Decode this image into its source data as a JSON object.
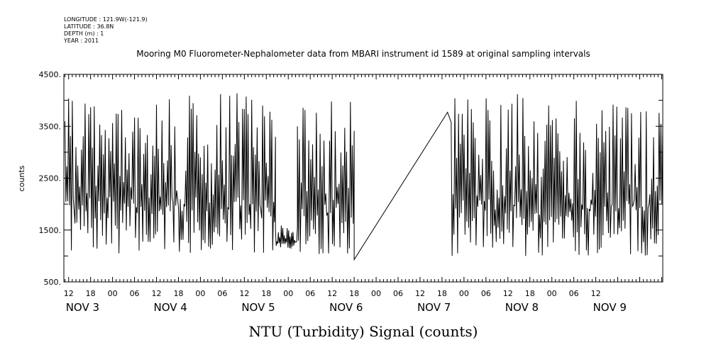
{
  "header": {
    "lines": [
      "LONGITUDE : 121.9W(-121.9)",
      "LATITUDE : 36.8N",
      "DEPTH (m) : 1",
      "YEAR : 2011"
    ]
  },
  "chart_data": {
    "type": "line",
    "title": "Mooring M0 Fluorometer-Nephalometer data from MBARI instrument id 1589 at original sampling intervals",
    "xlabel": "NTU (Turbidity) Signal (counts)",
    "ylabel": "counts",
    "ylim": [
      500,
      4500
    ],
    "yticks": [
      "500.",
      "1500.",
      "2500.",
      "3500.",
      "4500."
    ],
    "xlim_hours": [
      10.7,
      174.3
    ],
    "hour_ticks": [
      "12",
      "18",
      "00",
      "06",
      "12",
      "18",
      "00",
      "06",
      "12",
      "18",
      "00",
      "06",
      "12",
      "18",
      "00",
      "06",
      "12",
      "18",
      "00",
      "06",
      "12",
      "18",
      "00",
      "06",
      "12"
    ],
    "date_labels": [
      "NOV 3",
      "NOV 4",
      "NOV 5",
      "NOV 6",
      "NOV 7",
      "NOV 8",
      "NOV 9"
    ],
    "segments": [
      {
        "start": 11.0,
        "end": 68.5,
        "base": 1050,
        "peak": 4150,
        "n": 230,
        "seed": 7
      },
      {
        "start": 68.5,
        "end": 74.5,
        "base": 1100,
        "peak": 1600,
        "n": 30,
        "seed": 3
      },
      {
        "start": 74.5,
        "end": 90.0,
        "base": 1000,
        "peak": 4050,
        "n": 60,
        "seed": 11
      },
      {
        "start": 116.5,
        "end": 174.3,
        "base": 1000,
        "peak": 4150,
        "n": 230,
        "seed": 19
      }
    ],
    "gap_line": {
      "x": [
        90.0,
        115.5
      ],
      "y": [
        930,
        3770
      ]
    },
    "grid": false,
    "legend": "none"
  }
}
